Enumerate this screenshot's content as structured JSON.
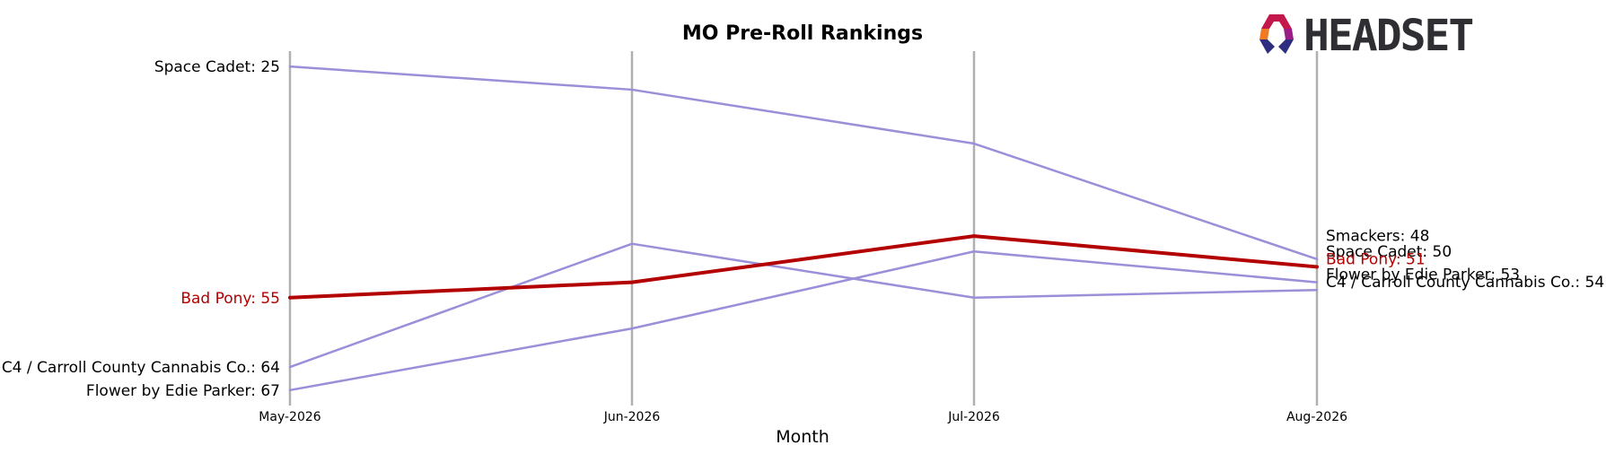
{
  "chart_data": {
    "type": "line",
    "title": "MO Pre-Roll Rankings",
    "xlabel": "Month",
    "ylabel": "",
    "categories": [
      "May-2026",
      "Jun-2026",
      "Jul-2026",
      "Aug-2026"
    ],
    "ylim": [
      69,
      23
    ],
    "y_inverted": true,
    "grid": "vertical lines at each month",
    "highlight_color": "#b30000",
    "series_color": "#9b8fd9",
    "series": [
      {
        "name": "Space Cadet",
        "values": [
          25,
          28,
          35,
          50
        ],
        "highlight": false,
        "start_label": "Space Cadet: 25",
        "end_label": "Space Cadet: 50"
      },
      {
        "name": "C4 / Carroll County Cannabis Co.",
        "values": [
          64,
          48,
          55,
          54
        ],
        "highlight": false,
        "start_label": "C4 / Carroll County Cannabis Co.: 64",
        "end_label": "C4 / Carroll County Cannabis Co.: 54"
      },
      {
        "name": "Flower by Edie Parker",
        "values": [
          67,
          59,
          49,
          53
        ],
        "highlight": false,
        "start_label": "Flower by Edie Parker: 67",
        "end_label": "Flower by Edie Parker: 53"
      },
      {
        "name": "Smackers",
        "values": [
          null,
          null,
          null,
          48
        ],
        "highlight": false,
        "start_label": "",
        "end_label": "Smackers: 48"
      },
      {
        "name": "Bad Pony",
        "values": [
          55,
          53,
          47,
          51
        ],
        "highlight": true,
        "start_label": "Bad Pony: 55",
        "end_label": "Bad Pony: 51"
      }
    ]
  },
  "logo": {
    "text": "HEADSET"
  }
}
